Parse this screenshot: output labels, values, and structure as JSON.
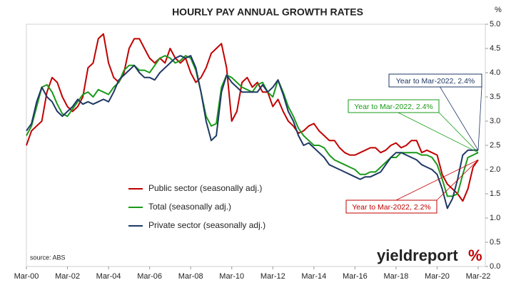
{
  "chart_data": {
    "type": "line",
    "title": "HOURLY PAY ANNUAL GROWTH RATES",
    "y_unit": "%",
    "source": "source: ABS",
    "logo": "yieldreport",
    "logo_mark": "%",
    "categories": [
      "Mar-00",
      null,
      null,
      null,
      null,
      null,
      null,
      null,
      "Mar-02",
      null,
      null,
      null,
      null,
      null,
      null,
      null,
      "Mar-04",
      null,
      null,
      null,
      null,
      null,
      null,
      null,
      "Mar-06",
      null,
      null,
      null,
      null,
      null,
      null,
      null,
      "Mar-08",
      null,
      null,
      null,
      null,
      null,
      null,
      null,
      "Mar-10",
      null,
      null,
      null,
      null,
      null,
      null,
      null,
      "Mar-12",
      null,
      null,
      null,
      null,
      null,
      null,
      null,
      "Mar-14",
      null,
      null,
      null,
      null,
      null,
      null,
      null,
      "Mar-16",
      null,
      null,
      null,
      null,
      null,
      null,
      null,
      "Mar-18",
      null,
      null,
      null,
      null,
      null,
      null,
      null,
      "Mar-20",
      null,
      null,
      null,
      null,
      null,
      null,
      null,
      "Mar-22"
    ],
    "series": [
      {
        "name": "Public sector (seasonally adj.)",
        "color": "#c00000",
        "values": [
          2.5,
          2.8,
          2.9,
          3.0,
          3.6,
          3.9,
          3.8,
          3.5,
          3.3,
          3.2,
          3.3,
          3.5,
          4.1,
          4.2,
          4.7,
          4.8,
          4.2,
          3.9,
          3.8,
          4.0,
          4.5,
          4.7,
          4.7,
          4.5,
          4.3,
          4.2,
          4.3,
          4.2,
          4.5,
          4.3,
          4.2,
          4.3,
          4.0,
          3.8,
          3.9,
          4.1,
          4.4,
          4.5,
          4.6,
          4.1,
          3.0,
          3.2,
          3.8,
          3.9,
          3.7,
          3.8,
          3.6,
          3.6,
          3.3,
          3.45,
          3.2,
          3.0,
          2.9,
          2.75,
          2.8,
          2.9,
          2.95,
          2.8,
          2.7,
          2.6,
          2.6,
          2.45,
          2.35,
          2.3,
          2.3,
          2.35,
          2.4,
          2.45,
          2.45,
          2.35,
          2.4,
          2.5,
          2.55,
          2.45,
          2.5,
          2.6,
          2.6,
          2.35,
          2.4,
          2.35,
          2.3,
          1.9,
          1.7,
          1.6,
          1.5,
          1.35,
          1.6,
          2.05,
          2.2
        ]
      },
      {
        "name": "Total (seasonally adj.)",
        "color": "#1a9a1a",
        "values": [
          2.7,
          2.9,
          3.3,
          3.7,
          3.75,
          3.6,
          3.35,
          3.15,
          3.1,
          3.25,
          3.4,
          3.55,
          3.6,
          3.5,
          3.65,
          3.6,
          3.55,
          3.7,
          3.8,
          4.05,
          4.15,
          4.15,
          4.05,
          4.05,
          4.0,
          4.15,
          4.3,
          4.35,
          4.3,
          4.2,
          4.25,
          4.35,
          4.3,
          4.05,
          3.6,
          3.1,
          2.9,
          2.95,
          3.7,
          3.95,
          3.9,
          3.8,
          3.7,
          3.65,
          3.6,
          3.75,
          3.8,
          3.6,
          3.5,
          3.85,
          3.6,
          3.3,
          3.1,
          2.85,
          2.7,
          2.6,
          2.5,
          2.5,
          2.45,
          2.3,
          2.2,
          2.15,
          2.1,
          2.05,
          2.0,
          1.9,
          1.9,
          1.95,
          1.95,
          2.05,
          2.15,
          2.25,
          2.25,
          2.35,
          2.35,
          2.35,
          2.35,
          2.3,
          2.3,
          2.25,
          2.1,
          1.8,
          1.45,
          1.45,
          1.5,
          1.9,
          2.25,
          2.3,
          2.35
        ]
      },
      {
        "name": "Private sector (seasonally adj.)",
        "color": "#1f3864",
        "values": [
          2.8,
          2.95,
          3.4,
          3.7,
          3.5,
          3.4,
          3.2,
          3.1,
          3.2,
          3.3,
          3.45,
          3.35,
          3.4,
          3.35,
          3.4,
          3.45,
          3.4,
          3.6,
          3.85,
          3.95,
          4.05,
          4.15,
          4.0,
          3.9,
          3.9,
          3.85,
          4.0,
          4.1,
          4.2,
          4.3,
          4.35,
          4.3,
          4.35,
          4.1,
          3.6,
          3.0,
          2.6,
          2.7,
          3.6,
          3.95,
          3.8,
          3.7,
          3.6,
          3.6,
          3.6,
          3.6,
          3.75,
          3.6,
          3.7,
          3.85,
          3.55,
          3.2,
          3.0,
          2.7,
          2.5,
          2.55,
          2.45,
          2.35,
          2.25,
          2.1,
          2.05,
          2.0,
          1.95,
          1.9,
          1.85,
          1.8,
          1.85,
          1.85,
          1.9,
          1.95,
          2.1,
          2.25,
          2.35,
          2.35,
          2.3,
          2.25,
          2.2,
          2.1,
          2.05,
          2.0,
          1.9,
          1.6,
          1.2,
          1.4,
          1.8,
          2.3,
          2.4,
          2.4,
          2.4
        ]
      }
    ],
    "ylim": [
      0,
      5
    ],
    "yticks": [
      {
        "value": 0,
        "label": "0.0"
      },
      {
        "value": 0.5,
        "label": "0.5"
      },
      {
        "value": 1,
        "label": "1.0"
      },
      {
        "value": 1.5,
        "label": "1.5"
      },
      {
        "value": 2,
        "label": "2.0"
      },
      {
        "value": 2.5,
        "label": "2.5"
      },
      {
        "value": 3,
        "label": "3.0"
      },
      {
        "value": 3.5,
        "label": "3.5"
      },
      {
        "value": 4,
        "label": "4.0"
      },
      {
        "value": 4.5,
        "label": "4.5"
      },
      {
        "value": 5,
        "label": "5.0"
      }
    ],
    "y_axis_side": "right",
    "grid": false,
    "legend": "lower-left",
    "annotations": [
      {
        "text": "Year to Mar-2022, 2.4%",
        "series": 2
      },
      {
        "text": "Year to Mar-2022, 2.4%",
        "series": 1
      },
      {
        "text": "Year to Mar-2022, 2.2%",
        "series": 0
      }
    ]
  }
}
